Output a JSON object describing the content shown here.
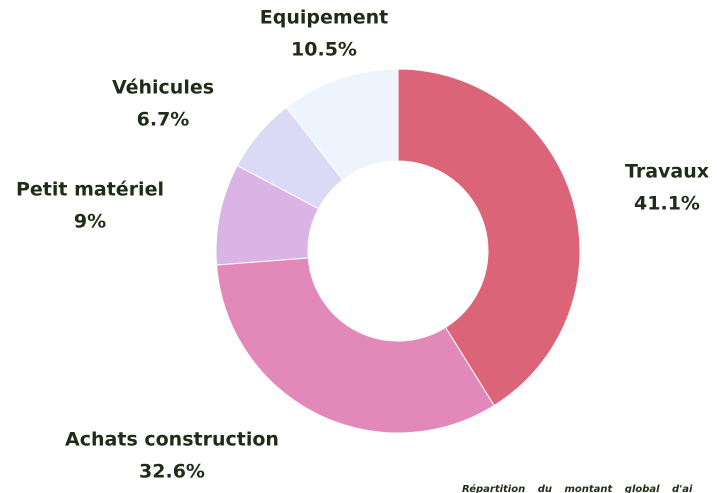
{
  "chart_data": {
    "type": "donut",
    "categories": [
      "Travaux",
      "Achats construction",
      "Petit matériel",
      "Véhicules",
      "Equipement"
    ],
    "values": [
      41.1,
      32.6,
      9,
      6.7,
      10.5
    ],
    "value_labels": [
      "41.1%",
      "32.6%",
      "9%",
      "6.7%",
      "10.5%"
    ],
    "colors": [
      "#dc6478",
      "#e389b9",
      "#d9b4e5",
      "#dcd9f6",
      "#eef4fd"
    ],
    "caption": "Répartition du montant global d'ai"
  }
}
